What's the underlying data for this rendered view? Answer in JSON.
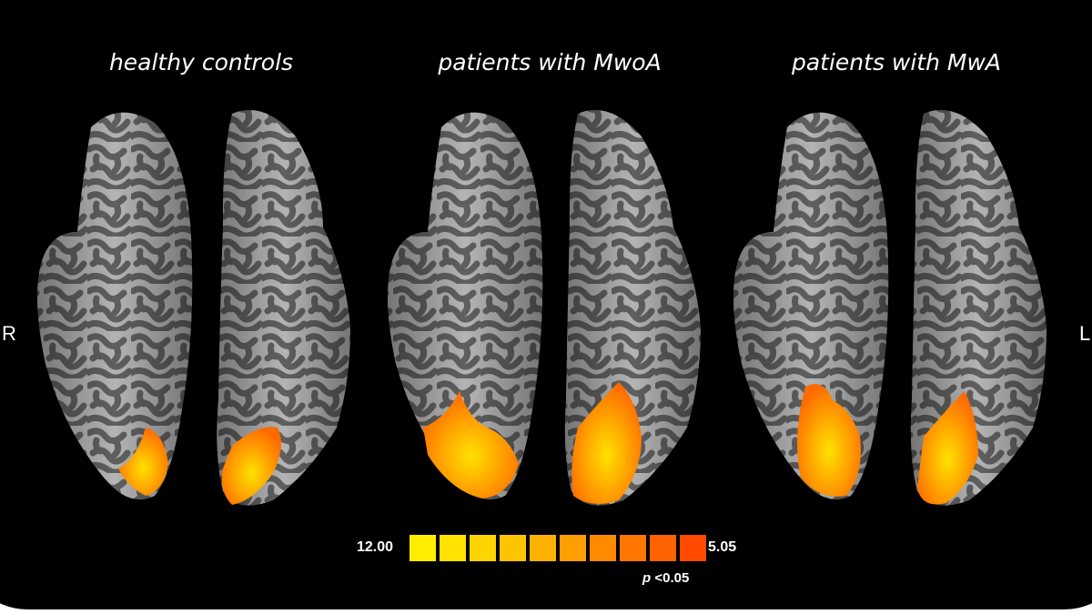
{
  "groups": [
    {
      "label": "healthy controls"
    },
    {
      "label": "patients with MwoA"
    },
    {
      "label": "patients with MwA"
    }
  ],
  "orientation": {
    "right": "R",
    "left": "L"
  },
  "colorbar": {
    "max_label": "12.00",
    "min_label": "5.05",
    "p_symbol": "p",
    "p_text": " <0.05",
    "colors": [
      "#ffee00",
      "#ffe200",
      "#ffd400",
      "#ffc400",
      "#ffb100",
      "#ff9e00",
      "#ff8a00",
      "#ff7600",
      "#ff6200",
      "#ff4a00"
    ]
  },
  "colors": {
    "background": "#000000",
    "gyri": "#b4b4b4",
    "sulci": "#5f5f5f",
    "activation_hot": "#ffdc00",
    "activation_cool": "#ff6a00"
  }
}
